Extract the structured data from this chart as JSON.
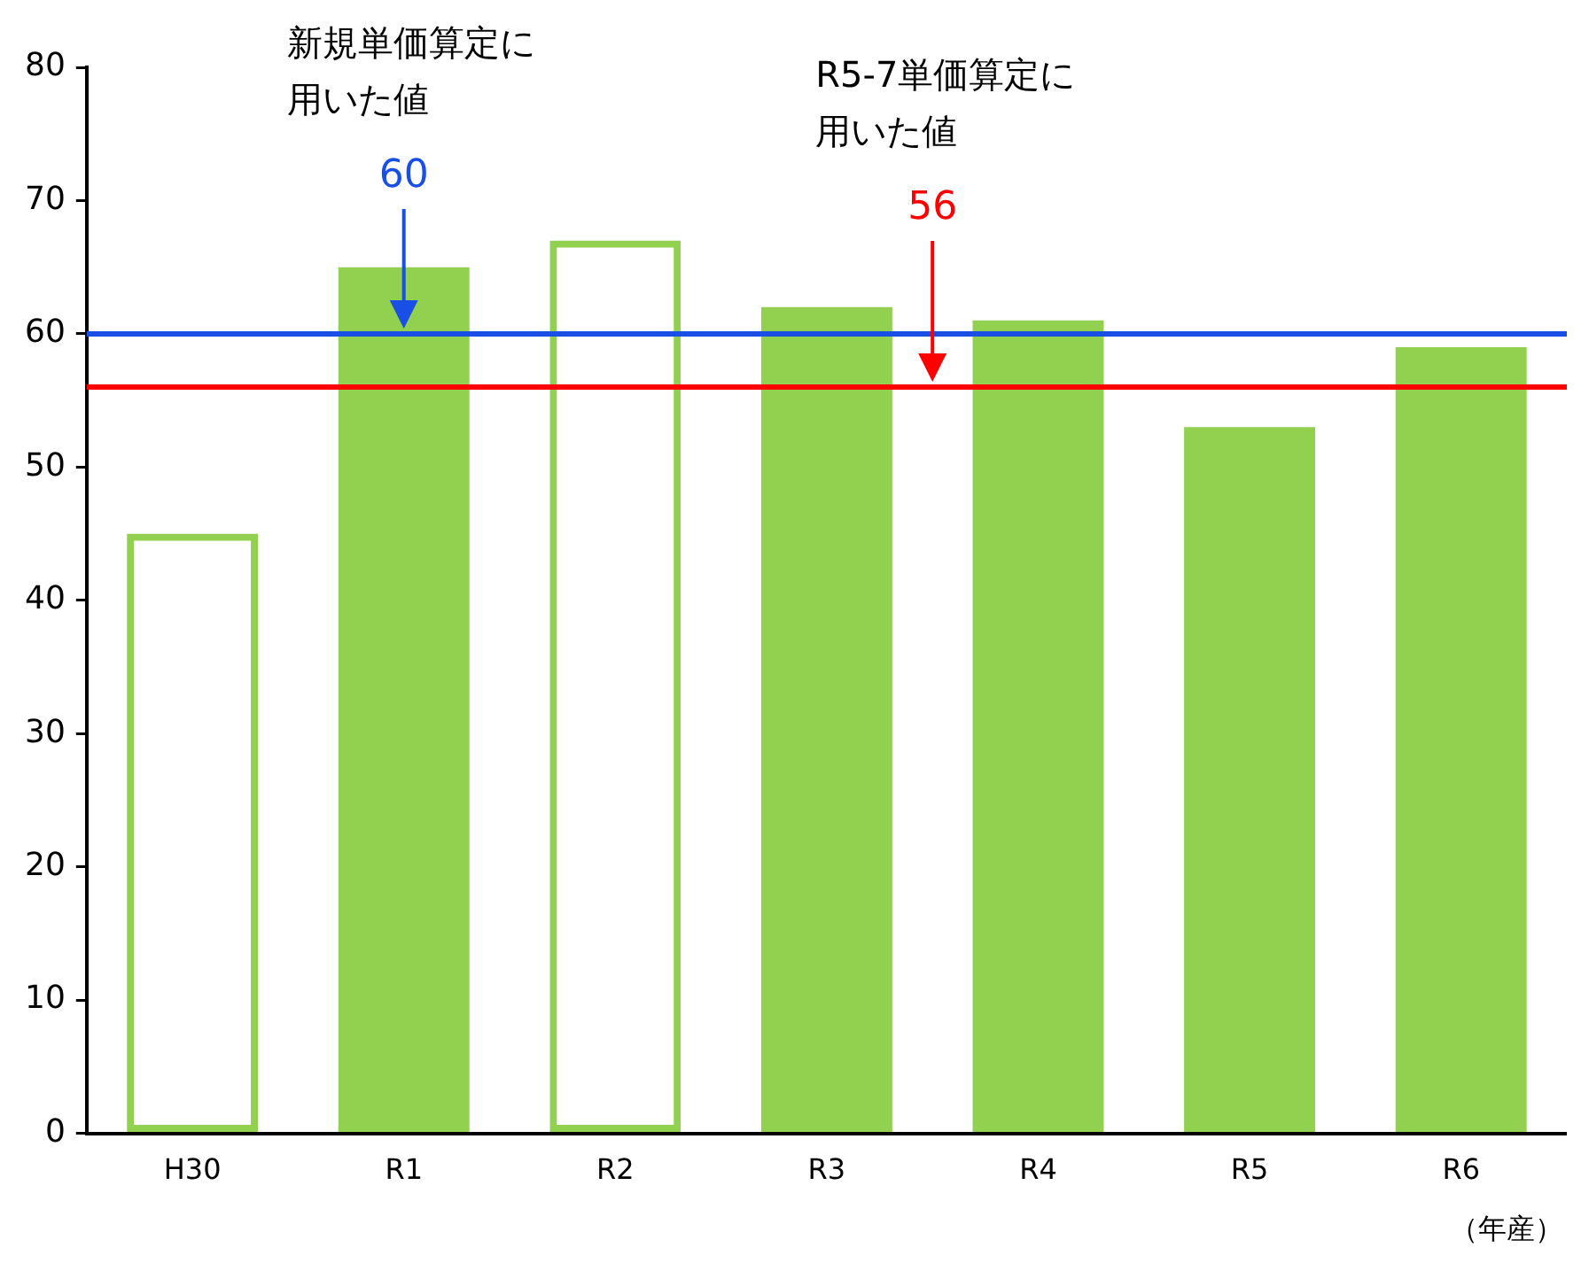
{
  "chart_data": {
    "type": "bar",
    "categories": [
      "H30",
      "R1",
      "R2",
      "R3",
      "R4",
      "R5",
      "R6"
    ],
    "series": [
      {
        "color": "#92d050",
        "values": [
          45,
          null,
          67,
          null,
          null,
          null,
          null
        ]
      },
      {
        "color": "#92d050",
        "values": [
          null,
          65,
          null,
          62,
          61,
          53,
          59
        ]
      }
    ],
    "xlabel": "（年産）",
    "ylim": [
      0,
      80
    ],
    "yticks": [
      0,
      10,
      20,
      30,
      40,
      50,
      60,
      70,
      80
    ],
    "grid": false,
    "legend": false,
    "ref_lines": [
      {
        "axis": "y",
        "value": 60,
        "label": "60",
        "color": "#1a4fe6"
      },
      {
        "axis": "y",
        "value": 56,
        "label": "56",
        "color": "#ff0000"
      }
    ],
    "annotations": [
      "新規単価算定に用いた値",
      "R5-7単価算定に用いた値"
    ]
  }
}
